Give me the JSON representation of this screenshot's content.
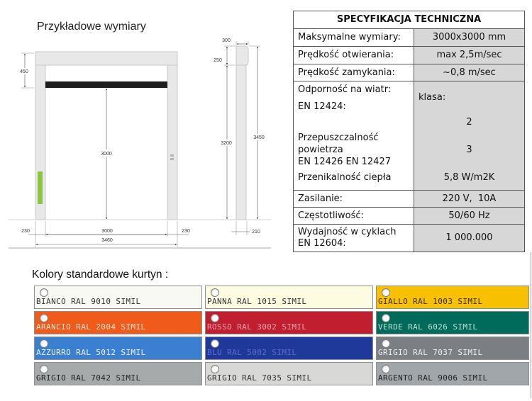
{
  "diagram": {
    "title": "Przykładowe wymiary",
    "front": {
      "head_height": "450",
      "opening_height": "3000",
      "post_left": "230",
      "opening_width": "3000",
      "post_right": "230",
      "total_width": "3460"
    },
    "side": {
      "depth": "300",
      "head_height": "250",
      "post_height": "3200",
      "total_height": "3450",
      "post_depth": "210"
    }
  },
  "spec": {
    "title": "SPECYFIKACJA TECHNICZNA",
    "rows": [
      {
        "label": "Maksymalne wymiary:",
        "value": "3000x3000 mm"
      },
      {
        "label": "Prędkość otwierania:",
        "value": "max 2,5m/sec"
      },
      {
        "label": "Prędkość zamykania:",
        "value": "~0,8 m/sec"
      }
    ],
    "group": {
      "wind_label": "Odporność na wiatr:",
      "wind_norm": "EN 12424:",
      "class_label": "klasa:",
      "wind_value": "2",
      "air_label": [
        "Przepuszczalność",
        "powietrza",
        "EN 12426 EN 12427"
      ],
      "air_value": "3",
      "heat_label": "Przenikalność ciepła",
      "heat_value": "5,8 W/m2K"
    },
    "rows_bottom": [
      {
        "label": "Zasilanie:",
        "value": "220 V,  10A"
      },
      {
        "label": "Częstotliwość:",
        "value": "50/60 Hz"
      },
      {
        "label": [
          "Wydajność w cyklach",
          "EN 12604:"
        ],
        "value": "1 000.000"
      }
    ]
  },
  "colors": {
    "title": "Kolory standardowe kurtyn :",
    "items": [
      {
        "label": "BIANCO RAL 9010 SIMIL",
        "color": "#f8f8f5",
        "text_color": "#333333"
      },
      {
        "label": "PANNA RAL 1015 SIMIL",
        "color": "#fdfbe0",
        "text_color": "#333333"
      },
      {
        "label": "GIALLO RAL 1003 SIMIL",
        "color": "#f7c000",
        "text_color": "#3a2a00"
      },
      {
        "label": "ARANCIO RAL 2004 SIMIL",
        "color": "#f05a1a",
        "text_color": "#ffe4d2"
      },
      {
        "label": "ROSSO RAL 3002 SIMIL",
        "color": "#c11f2f",
        "text_color": "#f3a3aa"
      },
      {
        "label": "VERDE RAL 6026 SIMIL",
        "color": "#006b5b",
        "text_color": "#bfe0d8"
      },
      {
        "label": "AZZURRO RAL 5012 SIMIL",
        "color": "#3b80d0",
        "text_color": "#eef4ff"
      },
      {
        "label": "BLU RAL 5002 SIMIL",
        "color": "#1f399b",
        "text_color": "#5b6cc8"
      },
      {
        "label": "GRIGIO RAL 7037 SIMIL",
        "color": "#7b7e83",
        "text_color": "#f0f0f0"
      },
      {
        "label": "GRIGIO RAL 7042 SIMIL",
        "color": "#a6aaaa",
        "text_color": "#222222"
      },
      {
        "label": "GRIGIO RAL 7035 SIMIL",
        "color": "#d8d8d7",
        "text_color": "#333333"
      },
      {
        "label": "ARGENTO RAL 9006 SIMIL",
        "color": "#a1a6ab",
        "text_color": "#222222"
      }
    ]
  }
}
